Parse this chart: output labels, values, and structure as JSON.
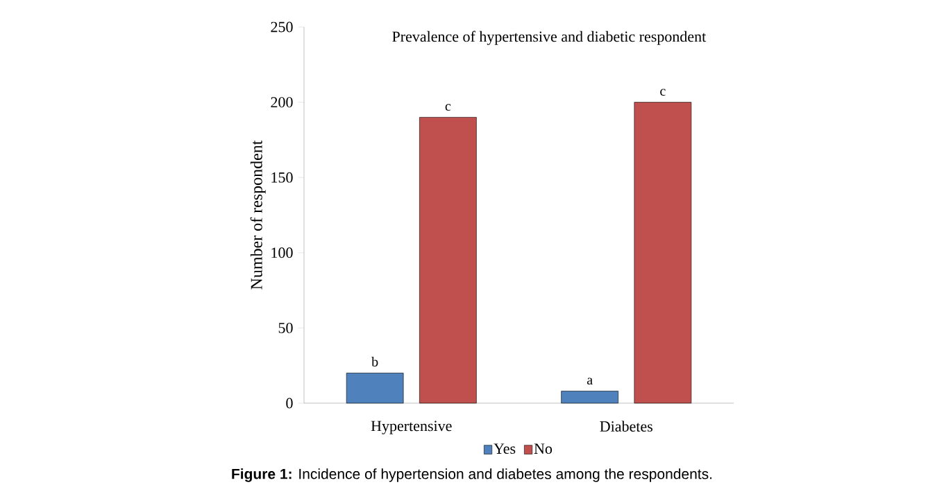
{
  "chart_data": {
    "type": "bar",
    "title": "Prevalence of hypertensive and diabetic respondent",
    "ylabel": "Number of respondent",
    "categories": [
      "Hypertensive",
      "Diabetes"
    ],
    "series": [
      {
        "name": "Yes",
        "color": "#4f81bd",
        "values": [
          20,
          8
        ],
        "value_labels": [
          "b",
          "a"
        ]
      },
      {
        "name": "No",
        "color": "#c0504d",
        "values": [
          190,
          200
        ],
        "value_labels": [
          "c",
          "c"
        ]
      }
    ],
    "ylim": [
      0,
      250
    ],
    "yticks": [
      0,
      50,
      100,
      150,
      200,
      250
    ],
    "grid": false,
    "legend": "bottom",
    "annotations": [
      "**Figure 1:** Incidence of hypertension and diabetes among the respondents."
    ]
  }
}
